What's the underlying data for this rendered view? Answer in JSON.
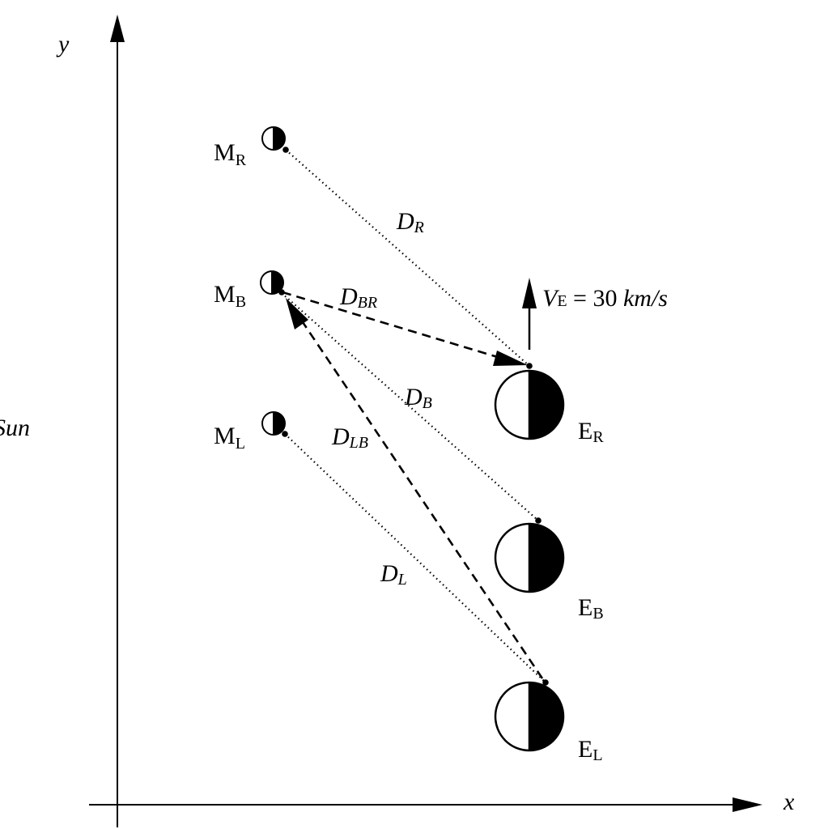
{
  "axes": {
    "x_label": "x",
    "y_label": "y"
  },
  "sun_label": "Sun",
  "velocity": {
    "symbol": "V",
    "subscript": "E",
    "equals": " = 30 ",
    "unit": "km/s"
  },
  "moons": [
    {
      "id": "R",
      "letter": "M",
      "subscript": "R"
    },
    {
      "id": "B",
      "letter": "M",
      "subscript": "B"
    },
    {
      "id": "L",
      "letter": "M",
      "subscript": "L"
    }
  ],
  "earths": [
    {
      "id": "R",
      "letter": "E",
      "subscript": "R"
    },
    {
      "id": "B",
      "letter": "E",
      "subscript": "B"
    },
    {
      "id": "L",
      "letter": "E",
      "subscript": "L"
    }
  ],
  "distances": [
    {
      "id": "DR",
      "letter": "D",
      "subscript": "R",
      "style": "dotted"
    },
    {
      "id": "DB",
      "letter": "D",
      "subscript": "B",
      "style": "dotted"
    },
    {
      "id": "DL",
      "letter": "D",
      "subscript": "L",
      "style": "dotted"
    },
    {
      "id": "DBR",
      "letter": "D",
      "subscript": "BR",
      "style": "dashed"
    },
    {
      "id": "DLB",
      "letter": "D",
      "subscript": "LB",
      "style": "dashed"
    }
  ],
  "colors": {
    "ink": "#000000",
    "background": "#ffffff"
  }
}
